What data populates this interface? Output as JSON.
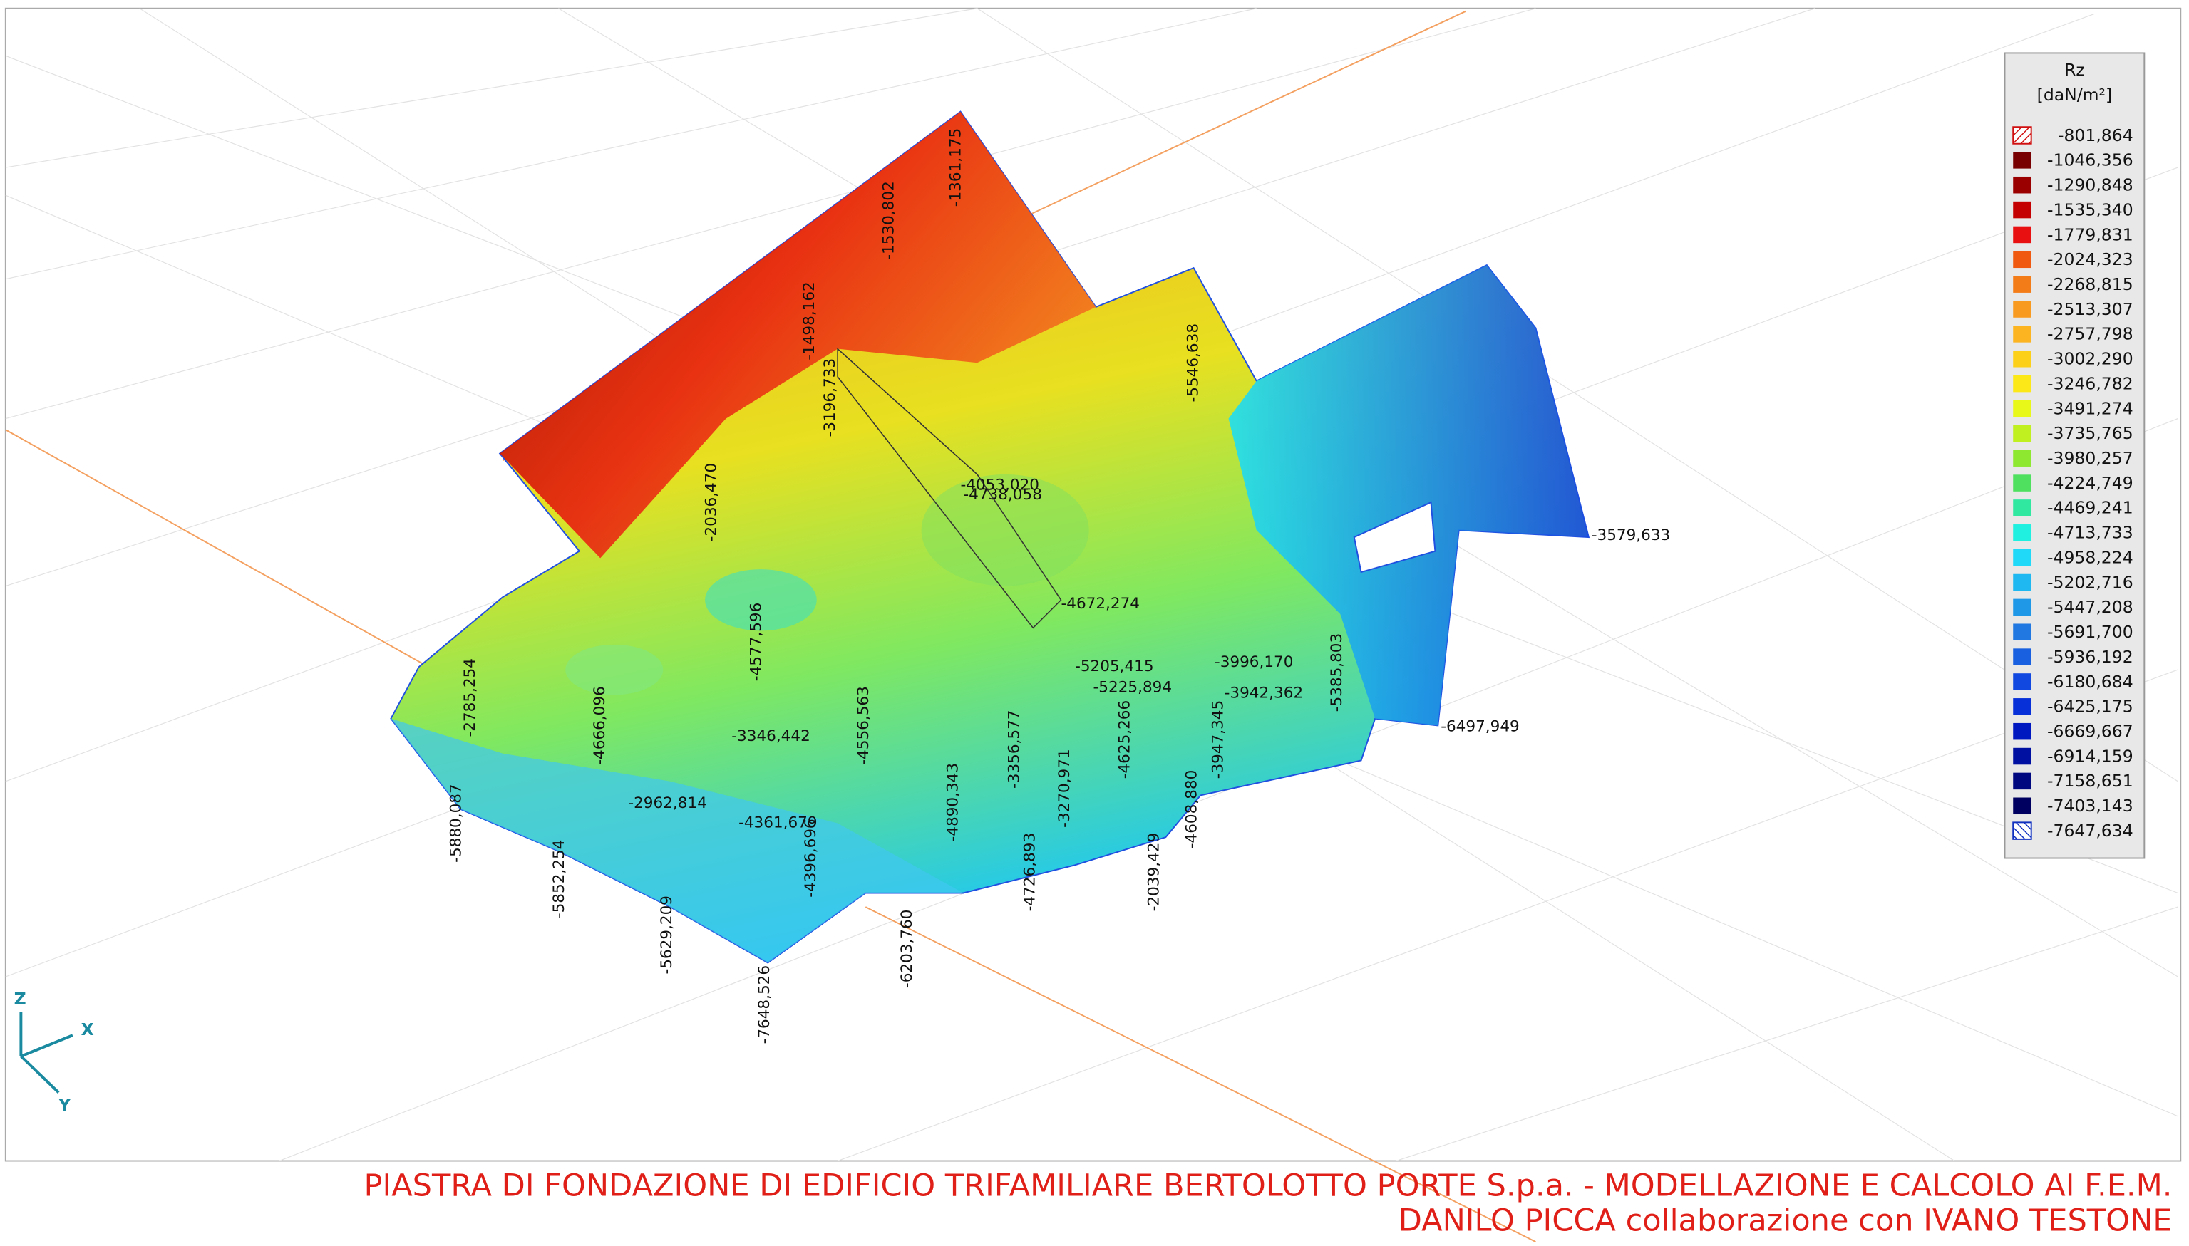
{
  "legend": {
    "title": "Rz",
    "unit": "[daN/m²]",
    "entries": [
      {
        "label": "-801,864",
        "color": "#d01010",
        "hatched": true
      },
      {
        "label": "-1046,356",
        "color": "#780000"
      },
      {
        "label": "-1290,848",
        "color": "#9a0000"
      },
      {
        "label": "-1535,340",
        "color": "#c40000"
      },
      {
        "label": "-1779,831",
        "color": "#e81010"
      },
      {
        "label": "-2024,323",
        "color": "#f05a10"
      },
      {
        "label": "-2268,815",
        "color": "#f47c18"
      },
      {
        "label": "-2513,307",
        "color": "#f89a20"
      },
      {
        "label": "-2757,798",
        "color": "#fcb420"
      },
      {
        "label": "-3002,290",
        "color": "#fcd018"
      },
      {
        "label": "-3246,782",
        "color": "#fce818"
      },
      {
        "label": "-3491,274",
        "color": "#e8f818"
      },
      {
        "label": "-3735,765",
        "color": "#c0f020"
      },
      {
        "label": "-3980,257",
        "color": "#8ee830"
      },
      {
        "label": "-4224,749",
        "color": "#50e060"
      },
      {
        "label": "-4469,241",
        "color": "#30e8a0"
      },
      {
        "label": "-4713,733",
        "color": "#20f0e0"
      },
      {
        "label": "-4958,224",
        "color": "#20d8f8"
      },
      {
        "label": "-5202,716",
        "color": "#20b8f0"
      },
      {
        "label": "-5447,208",
        "color": "#2098e8"
      },
      {
        "label": "-5691,700",
        "color": "#2078e0"
      },
      {
        "label": "-5936,192",
        "color": "#1860e0"
      },
      {
        "label": "-6180,684",
        "color": "#1048e0"
      },
      {
        "label": "-6425,175",
        "color": "#0830d8"
      },
      {
        "label": "-6669,667",
        "color": "#0018c0"
      },
      {
        "label": "-6914,159",
        "color": "#0010a0"
      },
      {
        "label": "-7158,651",
        "color": "#000880"
      },
      {
        "label": "-7403,143",
        "color": "#000060"
      },
      {
        "label": "-7647,634",
        "color": "#1030c0",
        "hatched": true
      }
    ]
  },
  "labels": [
    "-4053,020",
    "-4738,058",
    "-4672,274",
    "-3996,170",
    "-3942,362",
    "-3346,442",
    "-5205,415",
    "-5225,894",
    "-4361,679",
    "-2962,814",
    "-3579,633",
    "-6497,949",
    "-1498,162",
    "-3196,733",
    "-2785,254",
    "-4666,096",
    "-4577,596",
    "-4556,563",
    "-3356,577",
    "-3947,345",
    "-5385,803",
    "-5546,638",
    "-5880,087",
    "-5852,254",
    "-5629,209",
    "-7648,526",
    "-4396,696",
    "-6203,760",
    "-4890,343",
    "-4726,893",
    "-3270,971",
    "-2039,429",
    "-4625,266",
    "-4608,880",
    "-1530,802",
    "-1361,175",
    "-2036,470"
  ],
  "axes": {
    "z": "Z",
    "x": "X",
    "y": "Y"
  },
  "footer": {
    "line1": "PIASTRA DI FONDAZIONE DI EDIFICIO TRIFAMILIARE BERTOLOTTO PORTE S.p.a. - MODELLAZIONE E CALCOLO AI F.E.M.",
    "line2": "DANILO PICCA collaborazione con IVANO TESTONE"
  }
}
